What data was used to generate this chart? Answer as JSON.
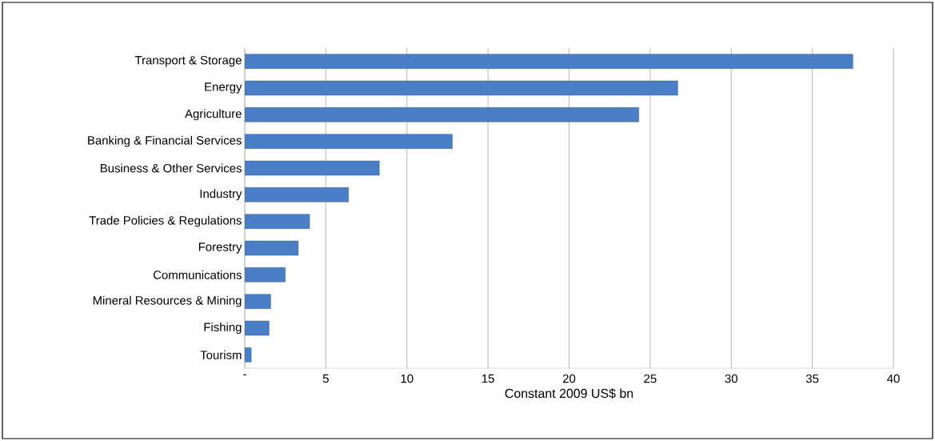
{
  "chart_data": {
    "type": "bar",
    "orientation": "horizontal",
    "xlabel": "Constant 2009 US$ bn",
    "categories": [
      "Transport & Storage",
      "Energy",
      "Agriculture",
      "Banking & Financial Services",
      "Business & Other Services",
      "Industry",
      "Trade Policies & Regulations",
      "Forestry",
      "Communications",
      "Mineral Resources & Mining",
      "Fishing",
      "Tourism"
    ],
    "values": [
      37.5,
      26.7,
      24.3,
      12.8,
      8.3,
      6.4,
      4.0,
      3.3,
      2.5,
      1.6,
      1.5,
      0.4
    ],
    "color": "#4a7fc8",
    "xlim": [
      0,
      40
    ],
    "xticks": [
      {
        "value": 0,
        "label": "-"
      },
      5,
      10,
      15,
      20,
      25,
      30,
      35,
      40
    ],
    "grid": "x"
  }
}
